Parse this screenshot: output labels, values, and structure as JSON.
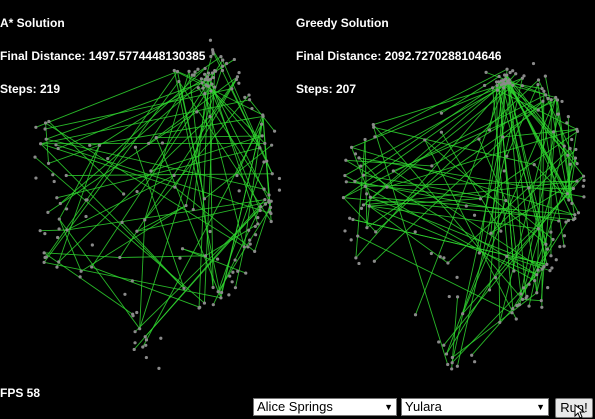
{
  "astar": {
    "title": "A* Solution",
    "distance": "Final Distance: 1497.5774448130385",
    "steps": "Steps: 219"
  },
  "greedy": {
    "title": "Greedy Solution",
    "distance": "Final Distance: 2092.7270288104646",
    "steps": "Steps: 207"
  },
  "fps": "FPS 58",
  "controls": {
    "from_value": "Alice Springs",
    "to_value": "Yulara",
    "run_label": "Run!"
  },
  "colors": {
    "background": "#000000",
    "path": "#2fd62f",
    "node": "#8a8a8a",
    "text": "#ffffff"
  },
  "icons": {
    "dropdown": "chevron-down-icon",
    "cursor": "mouse-pointer-icon"
  }
}
